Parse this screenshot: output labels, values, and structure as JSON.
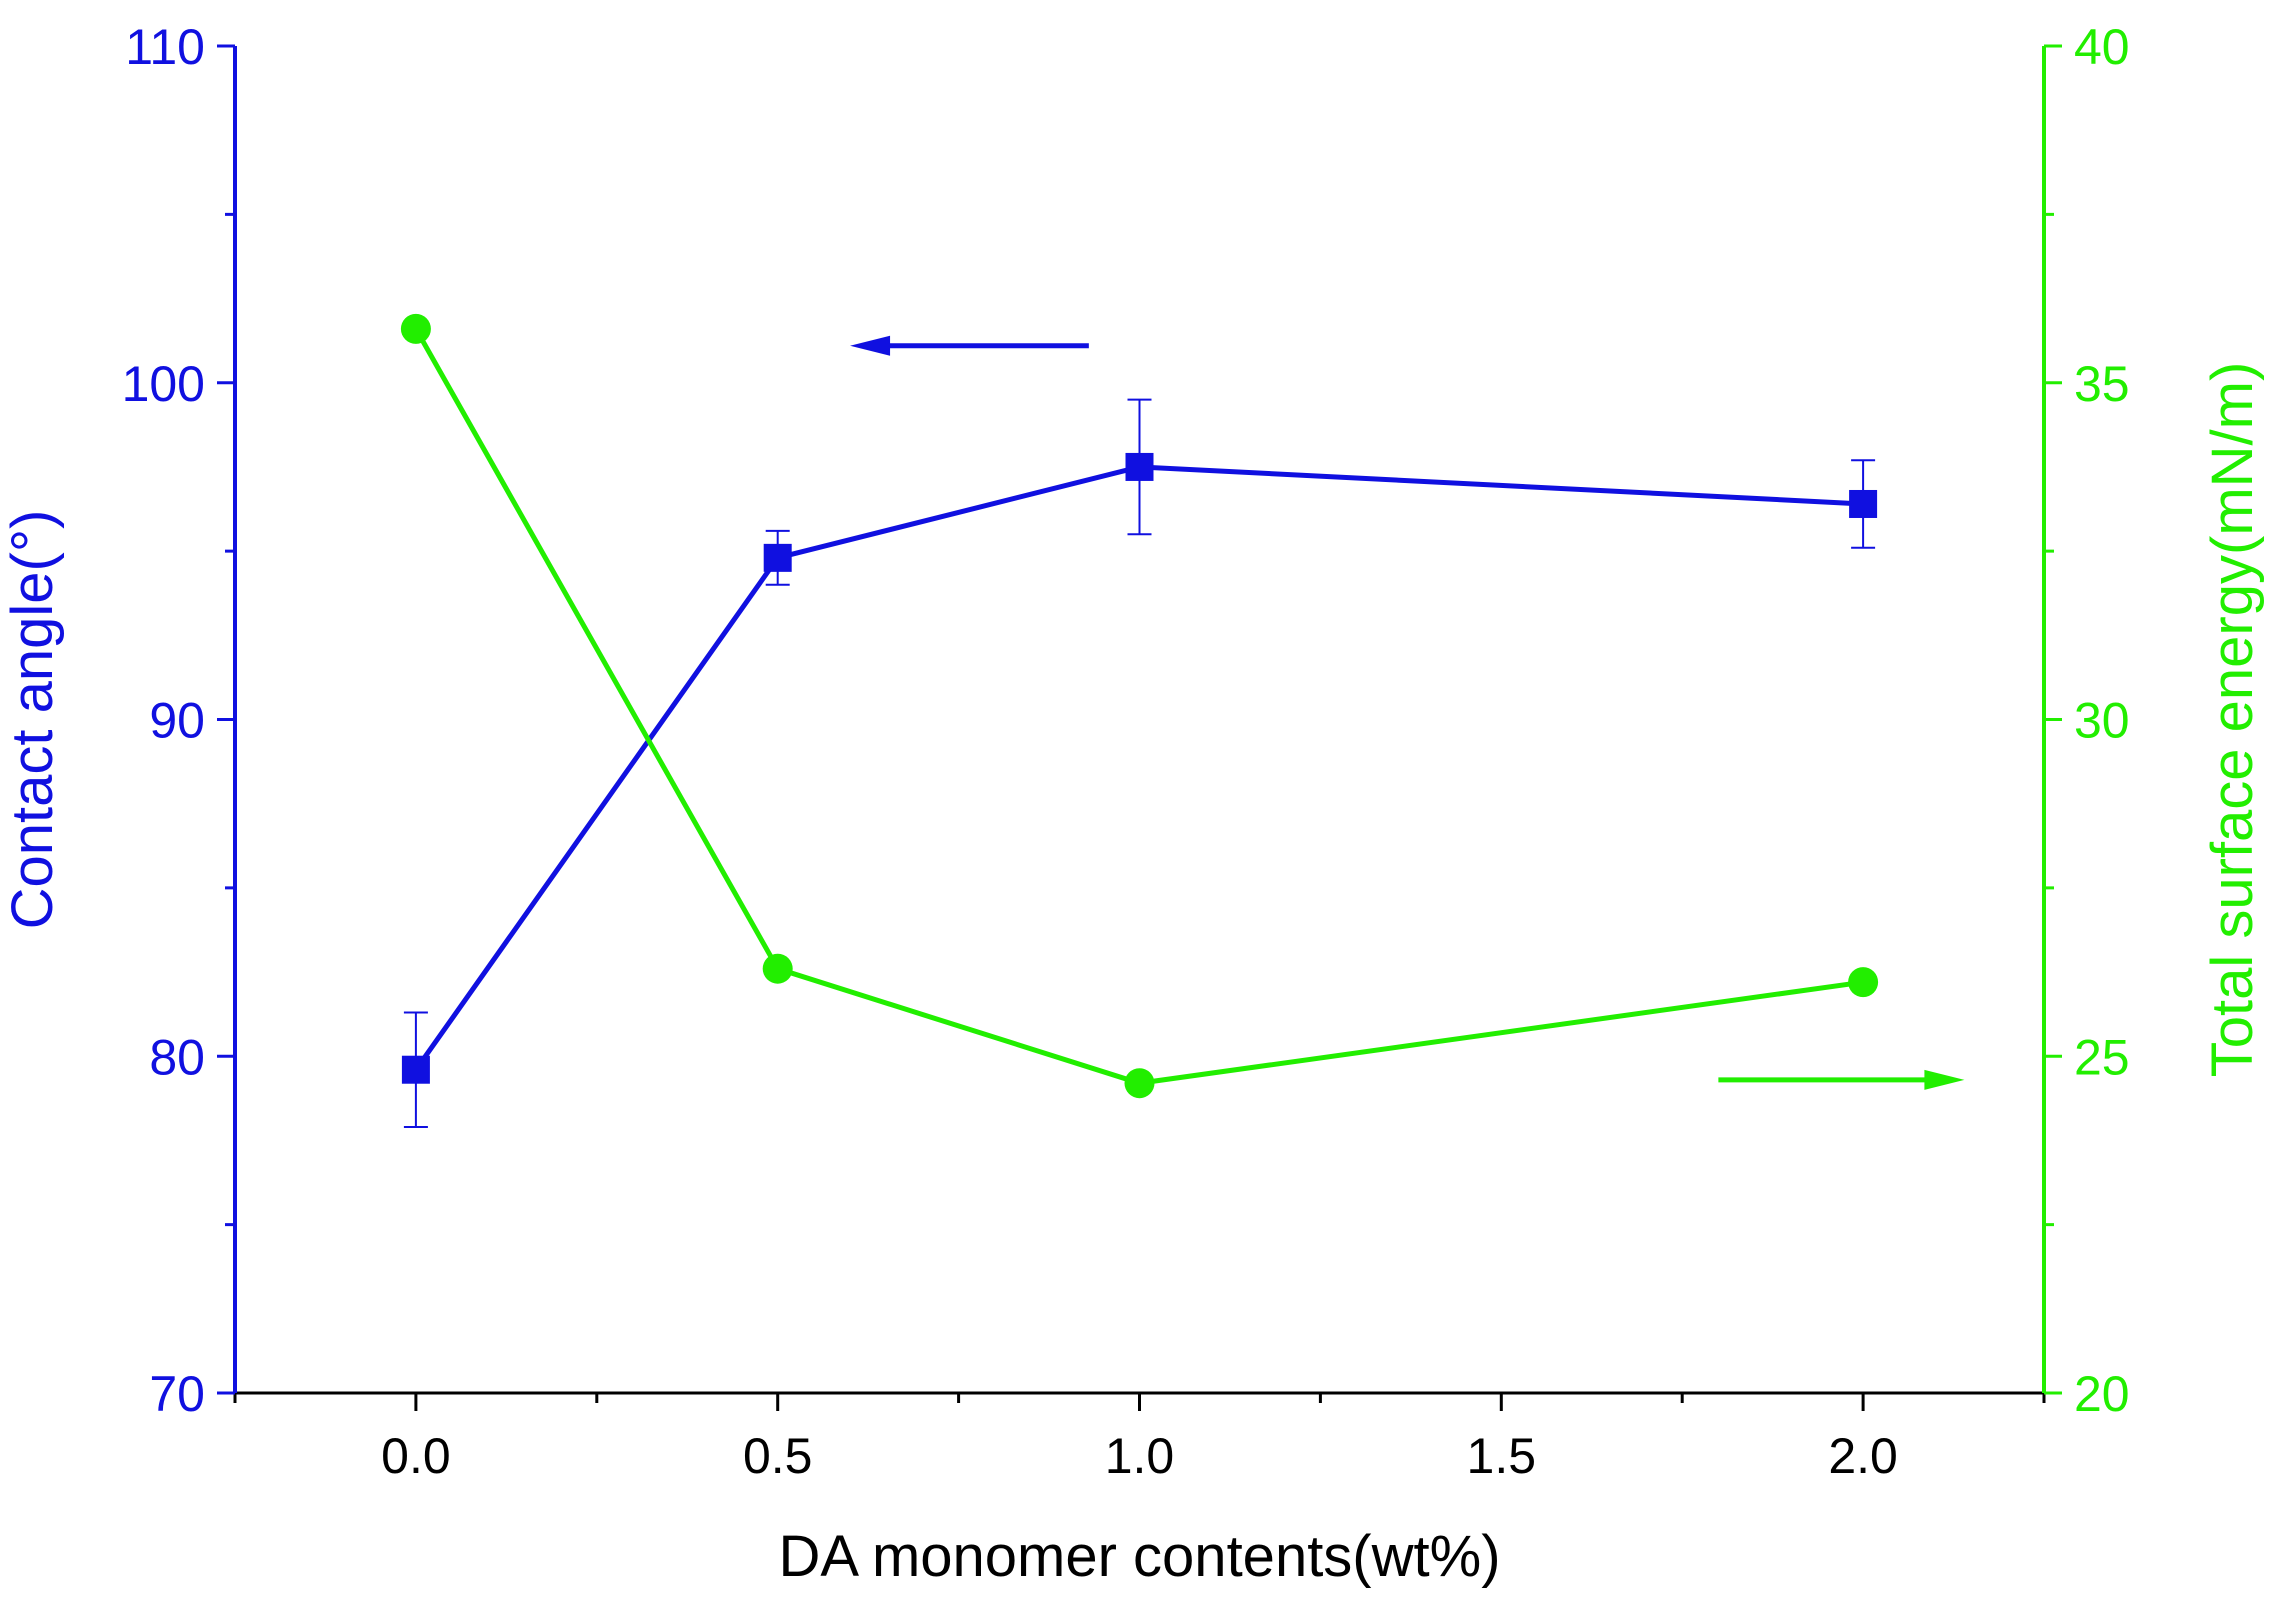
{
  "chart_data": {
    "type": "line",
    "title": "",
    "xlabel": "DA monomer contents(wt%)",
    "xlim": [
      -0.25,
      2.25
    ],
    "xticks": [
      0.0,
      0.5,
      1.0,
      1.5,
      2.0
    ],
    "xtick_labels": [
      "0.0",
      "0.5",
      "1.0",
      "1.5",
      "2.0"
    ],
    "y_left": {
      "label": "Contact angle(°)",
      "color": "#1010E0",
      "ylim": [
        70,
        110
      ],
      "ticks": [
        70,
        80,
        90,
        100,
        110
      ],
      "tick_labels": [
        "70",
        "80",
        "90",
        "100",
        "110"
      ]
    },
    "y_right": {
      "label": "Total surface energy(mN/m)",
      "color": "#22EE00",
      "ylim": [
        20,
        40
      ],
      "ticks": [
        20,
        25,
        30,
        35,
        40
      ],
      "tick_labels": [
        "20",
        "25",
        "30",
        "35",
        "40"
      ]
    },
    "series": [
      {
        "name": "Contact angle",
        "axis": "left",
        "marker": "square",
        "color": "#1010E0",
        "x": [
          0.0,
          0.5,
          1.0,
          2.0
        ],
        "values": [
          79.6,
          94.8,
          97.5,
          96.4
        ],
        "errors": [
          1.7,
          0.8,
          2.0,
          1.3
        ]
      },
      {
        "name": "Total surface energy",
        "axis": "right",
        "marker": "circle",
        "color": "#22EE00",
        "x": [
          0.0,
          0.5,
          1.0,
          2.0
        ],
        "values": [
          35.8,
          26.3,
          24.6,
          26.1
        ]
      }
    ],
    "annotations": [
      {
        "type": "arrow",
        "direction": "left",
        "target_axis": "left",
        "color": "#1010E0",
        "x_from": 0.93,
        "x_to": 0.6,
        "y": 101.1
      },
      {
        "type": "arrow",
        "direction": "right",
        "target_axis": "right",
        "color": "#22EE00",
        "x_from": 1.8,
        "x_to": 2.14,
        "y": 24.65
      }
    ]
  }
}
